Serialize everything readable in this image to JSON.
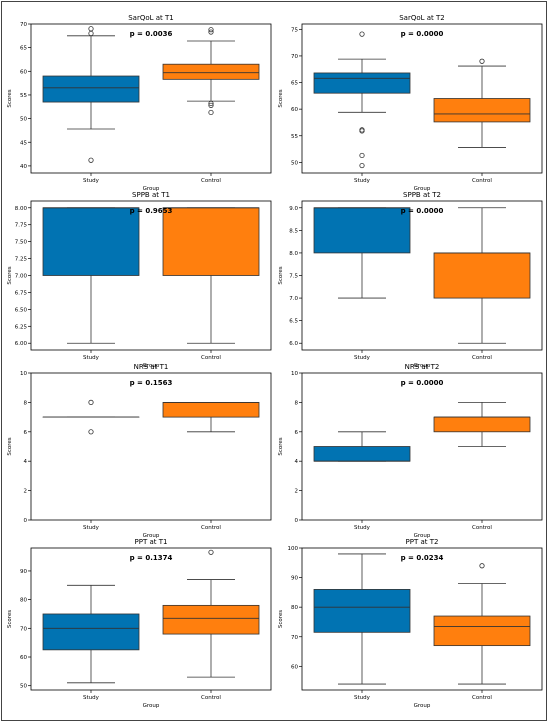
{
  "colors": {
    "study": "#0173b2",
    "control": "#ff7f0e",
    "median": "#333333",
    "whisker": "#333333",
    "axis": "#000000"
  },
  "chart_data": [
    {
      "type": "box",
      "title": "SarQoL at T1",
      "pvalue": "p = 0.0036",
      "xlabel": "Group",
      "ylabel": "Scores",
      "ylim": [
        38.5,
        70
      ],
      "yticks": [
        40,
        45,
        50,
        55,
        60,
        65,
        70
      ],
      "categories": [
        "Study",
        "Control"
      ],
      "boxes": [
        {
          "q1": 53.5,
          "median": 56.5,
          "q3": 59.0,
          "whisker_low": 47.8,
          "whisker_high": 67.5,
          "outliers": [
            41.2,
            68.0,
            69.0
          ]
        },
        {
          "q1": 58.3,
          "median": 59.7,
          "q3": 61.5,
          "whisker_low": 53.7,
          "whisker_high": 66.4,
          "outliers": [
            51.3,
            52.8,
            53.2,
            68.3,
            68.8
          ]
        }
      ]
    },
    {
      "type": "box",
      "title": "SarQoL at T2",
      "pvalue": "p = 0.0000",
      "xlabel": "Group",
      "ylabel": "Scores",
      "ylim": [
        48,
        76
      ],
      "yticks": [
        50,
        55,
        60,
        65,
        70,
        75
      ],
      "categories": [
        "Study",
        "Control"
      ],
      "boxes": [
        {
          "q1": 63.0,
          "median": 65.8,
          "q3": 66.8,
          "whisker_low": 59.4,
          "whisker_high": 69.4,
          "outliers": [
            49.4,
            51.3,
            55.9,
            56.1,
            74.1
          ]
        },
        {
          "q1": 57.6,
          "median": 59.1,
          "q3": 62.0,
          "whisker_low": 52.8,
          "whisker_high": 68.1,
          "outliers": [
            69.0
          ]
        }
      ]
    },
    {
      "type": "box",
      "title": "SPPB at T1",
      "pvalue": "p = 0.9653",
      "xlabel": "Group",
      "ylabel": "Scores",
      "ylim": [
        5.9,
        8.1
      ],
      "yticks": [
        6.0,
        6.25,
        6.5,
        6.75,
        7.0,
        7.25,
        7.5,
        7.75,
        8.0
      ],
      "tick_decimals": 2,
      "categories": [
        "Study",
        "Control"
      ],
      "boxes": [
        {
          "q1": 7.0,
          "median": 8.0,
          "q3": 8.0,
          "whisker_low": 6.0,
          "whisker_high": 8.0,
          "outliers": []
        },
        {
          "q1": 7.0,
          "median": 8.0,
          "q3": 8.0,
          "whisker_low": 6.0,
          "whisker_high": 8.0,
          "outliers": []
        }
      ]
    },
    {
      "type": "box",
      "title": "SPPB at T2",
      "pvalue": "p = 0.0000",
      "xlabel": "Group",
      "ylabel": "Scores",
      "ylim": [
        5.85,
        9.15
      ],
      "yticks": [
        6.0,
        6.5,
        7.0,
        7.5,
        8.0,
        8.5,
        9.0
      ],
      "tick_decimals": 1,
      "categories": [
        "Study",
        "Control"
      ],
      "boxes": [
        {
          "q1": 8.0,
          "median": 9.0,
          "q3": 9.0,
          "whisker_low": 7.0,
          "whisker_high": 9.0,
          "outliers": []
        },
        {
          "q1": 7.0,
          "median": 8.0,
          "q3": 8.0,
          "whisker_low": 6.0,
          "whisker_high": 9.0,
          "outliers": []
        }
      ]
    },
    {
      "type": "box",
      "title": "NRS at T1",
      "pvalue": "p = 0.1563",
      "xlabel": "Group",
      "ylabel": "Scores",
      "ylim": [
        0,
        10
      ],
      "yticks": [
        0,
        2,
        4,
        6,
        8,
        10
      ],
      "categories": [
        "Study",
        "Control"
      ],
      "boxes": [
        {
          "q1": 7.0,
          "median": 7.0,
          "q3": 7.0,
          "whisker_low": 7.0,
          "whisker_high": 7.0,
          "outliers": [
            6.0,
            8.0
          ]
        },
        {
          "q1": 7.0,
          "median": 8.0,
          "q3": 8.0,
          "whisker_low": 6.0,
          "whisker_high": 8.0,
          "outliers": []
        }
      ]
    },
    {
      "type": "box",
      "title": "NRS at T2",
      "pvalue": "p = 0.0000",
      "xlabel": "Group",
      "ylabel": "Scores",
      "ylim": [
        0,
        10
      ],
      "yticks": [
        0,
        2,
        4,
        6,
        8,
        10
      ],
      "categories": [
        "Study",
        "Control"
      ],
      "boxes": [
        {
          "q1": 4.0,
          "median": 4.0,
          "q3": 5.0,
          "whisker_low": 4.0,
          "whisker_high": 6.0,
          "outliers": []
        },
        {
          "q1": 6.0,
          "median": 7.0,
          "q3": 7.0,
          "whisker_low": 5.0,
          "whisker_high": 8.0,
          "outliers": []
        }
      ]
    },
    {
      "type": "box",
      "title": "PPT at T1",
      "pvalue": "p = 0.1374",
      "xlabel": "Group",
      "ylabel": "Scores",
      "ylim": [
        48.5,
        98
      ],
      "yticks": [
        50,
        60,
        70,
        80,
        90
      ],
      "categories": [
        "Study",
        "Control"
      ],
      "boxes": [
        {
          "q1": 62.5,
          "median": 70.0,
          "q3": 75.0,
          "whisker_low": 51.0,
          "whisker_high": 85.0,
          "outliers": []
        },
        {
          "q1": 68.0,
          "median": 73.5,
          "q3": 78.0,
          "whisker_low": 53.0,
          "whisker_high": 87.0,
          "outliers": [
            96.5
          ]
        }
      ]
    },
    {
      "type": "box",
      "title": "PPT at T2",
      "pvalue": "p = 0.0234",
      "xlabel": "Group",
      "ylabel": "Scores",
      "ylim": [
        52,
        100
      ],
      "yticks": [
        60,
        70,
        80,
        90,
        100
      ],
      "categories": [
        "Study",
        "Control"
      ],
      "boxes": [
        {
          "q1": 71.5,
          "median": 80.0,
          "q3": 86.0,
          "whisker_low": 54.0,
          "whisker_high": 98.0,
          "outliers": []
        },
        {
          "q1": 67.0,
          "median": 73.5,
          "q3": 77.0,
          "whisker_low": 54.0,
          "whisker_high": 88.0,
          "outliers": [
            94.0
          ]
        }
      ]
    }
  ]
}
